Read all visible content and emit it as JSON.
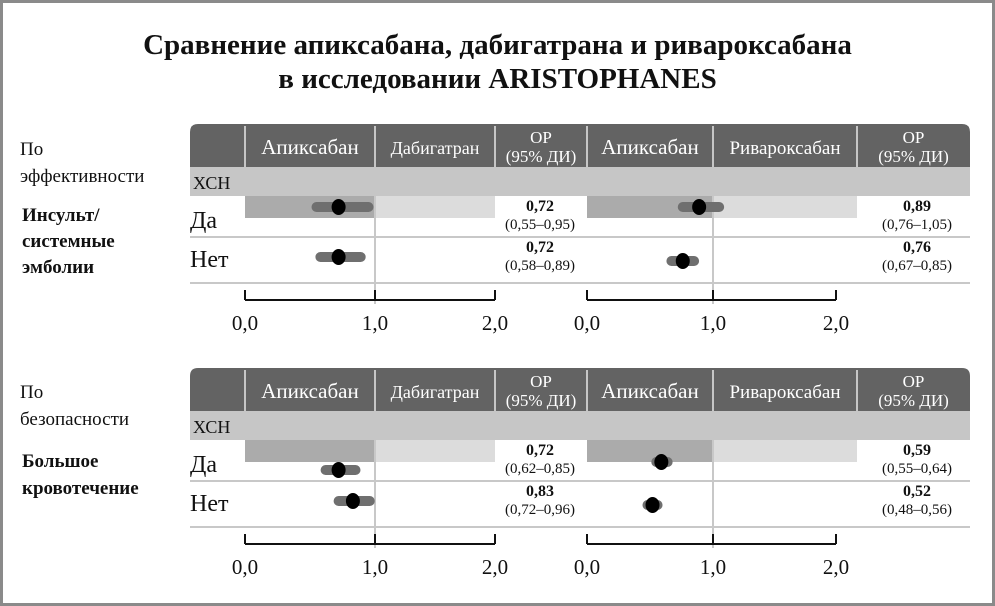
{
  "title": {
    "line1": "Сравнение апиксабана, дабигатрана и ривароксабана",
    "line2": "в исследовании ARISTOPHANES"
  },
  "colors": {
    "header": "#636363",
    "subgroup_row": "#c6c6c6",
    "shade_dark": "#ababab",
    "shade_light": "#dcdcdc",
    "ci_bar": "#6f6f6f",
    "point": "#000000",
    "ref_line": "#c8c8c8"
  },
  "chart_data": [
    {
      "type": "forest",
      "section_label": "По эффективности",
      "outcome_label": "Инсульт/ системные эмболии",
      "subgroup_label": "ХСН",
      "comparisons": [
        {
          "left_header": "Апиксабан",
          "right_header": "Дабигатран",
          "hr_header_line1": "ОР",
          "hr_header_line2": "(95% ДИ)",
          "xlim": [
            0,
            2
          ],
          "ticks": [
            0,
            1,
            2
          ],
          "tick_labels": [
            "0,0",
            "1,0",
            "2,0"
          ],
          "rows": [
            {
              "label": "Да",
              "hr": 0.72,
              "lo": 0.55,
              "hi": 0.95,
              "hr_text": "0,72",
              "ci_text": "(0,55–0,95)"
            },
            {
              "label": "Нет",
              "hr": 0.72,
              "lo": 0.58,
              "hi": 0.89,
              "hr_text": "0,72",
              "ci_text": "(0,58–0,89)"
            }
          ]
        },
        {
          "left_header": "Апиксабан",
          "right_header": "Ривароксабан",
          "hr_header_line1": "ОР",
          "hr_header_line2": "(95% ДИ)",
          "xlim": [
            0,
            2
          ],
          "ticks": [
            0,
            1,
            2
          ],
          "tick_labels": [
            "0,0",
            "1,0",
            "2,0"
          ],
          "rows": [
            {
              "label": "Да",
              "hr": 0.89,
              "lo": 0.76,
              "hi": 1.05,
              "hr_text": "0,89",
              "ci_text": "(0,76–1,05)"
            },
            {
              "label": "Нет",
              "hr": 0.76,
              "lo": 0.67,
              "hi": 0.85,
              "hr_text": "0,76",
              "ci_text": "(0,67–0,85)"
            }
          ]
        }
      ]
    },
    {
      "type": "forest",
      "section_label": "По безопасности",
      "outcome_label": "Большое кровотечение",
      "subgroup_label": "ХСН",
      "comparisons": [
        {
          "left_header": "Апиксабан",
          "right_header": "Дабигатран",
          "hr_header_line1": "ОР",
          "hr_header_line2": "(95% ДИ)",
          "xlim": [
            0,
            2
          ],
          "ticks": [
            0,
            1,
            2
          ],
          "tick_labels": [
            "0,0",
            "1,0",
            "2,0"
          ],
          "rows": [
            {
              "label": "Да",
              "hr": 0.72,
              "lo": 0.62,
              "hi": 0.85,
              "hr_text": "0,72",
              "ci_text": "(0,62–0,85)"
            },
            {
              "label": "Нет",
              "hr": 0.83,
              "lo": 0.72,
              "hi": 0.96,
              "hr_text": "0,83",
              "ci_text": "(0,72–0,96)"
            }
          ]
        },
        {
          "left_header": "Апиксабан",
          "right_header": "Ривароксабан",
          "hr_header_line1": "ОР",
          "hr_header_line2": "(95% ДИ)",
          "xlim": [
            0,
            2
          ],
          "ticks": [
            0,
            1,
            2
          ],
          "tick_labels": [
            "0,0",
            "1,0",
            "2,0"
          ],
          "rows": [
            {
              "label": "Да",
              "hr": 0.59,
              "lo": 0.55,
              "hi": 0.64,
              "hr_text": "0,59",
              "ci_text": "(0,55–0,64)"
            },
            {
              "label": "Нет",
              "hr": 0.52,
              "lo": 0.48,
              "hi": 0.56,
              "hr_text": "0,52",
              "ci_text": "(0,48–0,56)"
            }
          ]
        }
      ]
    }
  ]
}
